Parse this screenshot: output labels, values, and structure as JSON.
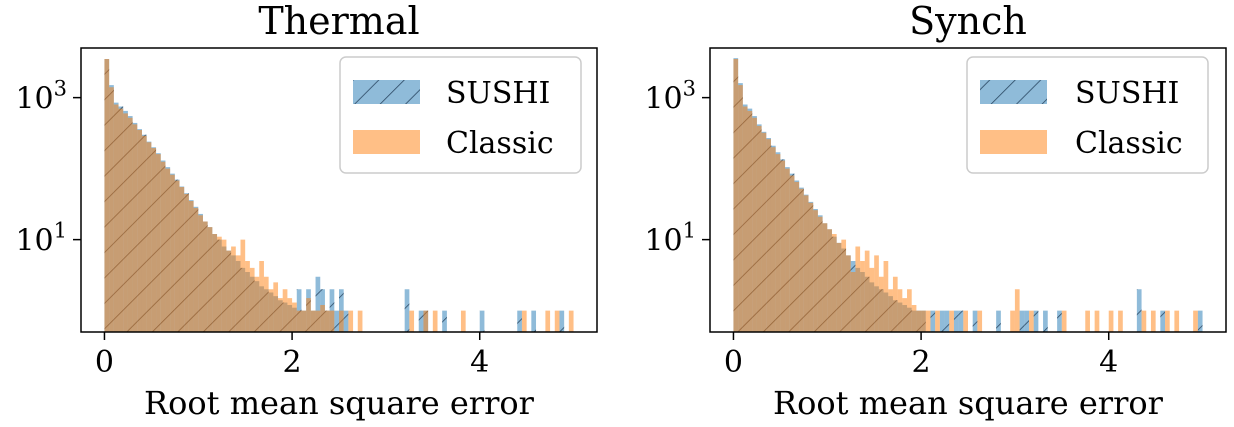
{
  "chart_data": [
    {
      "type": "bar",
      "title": "Thermal",
      "xlabel": "Root mean square error",
      "ylabel": "",
      "xlim": [
        -0.25,
        5.25
      ],
      "ylim": [
        0.5,
        5000
      ],
      "yscale": "log",
      "x_ticks": [
        0,
        2,
        4
      ],
      "x_tick_labels": [
        "0",
        "2",
        "4"
      ],
      "y_ticks": [
        1000,
        10
      ],
      "y_tick_labels": [
        {
          "base": "10",
          "exp": "3"
        },
        {
          "base": "10",
          "exp": "1"
        }
      ],
      "legend_position": "upper right",
      "bin_width": 0.05,
      "series": [
        {
          "name": "SUSHI",
          "color": "#1f77b4",
          "hatch": "/",
          "bins": [
            [
              0.0,
              3500
            ],
            [
              0.05,
              1500
            ],
            [
              0.1,
              850
            ],
            [
              0.15,
              750
            ],
            [
              0.2,
              650
            ],
            [
              0.25,
              550
            ],
            [
              0.3,
              440
            ],
            [
              0.35,
              360
            ],
            [
              0.4,
              300
            ],
            [
              0.45,
              240
            ],
            [
              0.5,
              200
            ],
            [
              0.55,
              165
            ],
            [
              0.6,
              130
            ],
            [
              0.65,
              105
            ],
            [
              0.7,
              85
            ],
            [
              0.75,
              70
            ],
            [
              0.8,
              56
            ],
            [
              0.85,
              45
            ],
            [
              0.9,
              36
            ],
            [
              0.95,
              29
            ],
            [
              1.0,
              23
            ],
            [
              1.05,
              18
            ],
            [
              1.1,
              15
            ],
            [
              1.15,
              12
            ],
            [
              1.2,
              10
            ],
            [
              1.25,
              8
            ],
            [
              1.3,
              7
            ],
            [
              1.35,
              6
            ],
            [
              1.4,
              5
            ],
            [
              1.45,
              4
            ],
            [
              1.5,
              3.5
            ],
            [
              1.55,
              3
            ],
            [
              1.6,
              2.6
            ],
            [
              1.65,
              2.2
            ],
            [
              1.7,
              2
            ],
            [
              1.75,
              1.8
            ],
            [
              1.8,
              1.6
            ],
            [
              1.85,
              1.4
            ],
            [
              1.9,
              1.3
            ],
            [
              1.95,
              1.2
            ],
            [
              2.0,
              1.1
            ],
            [
              2.05,
              2
            ],
            [
              2.1,
              1
            ],
            [
              2.15,
              2
            ],
            [
              2.2,
              1
            ],
            [
              2.25,
              3
            ],
            [
              2.3,
              2
            ],
            [
              2.35,
              1
            ],
            [
              2.4,
              2
            ],
            [
              2.45,
              1
            ],
            [
              2.5,
              2
            ],
            [
              2.55,
              1
            ],
            [
              3.2,
              2
            ],
            [
              3.35,
              1
            ],
            [
              3.4,
              1
            ],
            [
              3.6,
              1
            ],
            [
              4.0,
              1
            ],
            [
              4.4,
              1
            ],
            [
              4.55,
              1
            ],
            [
              4.85,
              1
            ]
          ]
        },
        {
          "name": "Classic",
          "color": "#ff7f0e",
          "bins": [
            [
              0.0,
              3500
            ],
            [
              0.05,
              1400
            ],
            [
              0.1,
              800
            ],
            [
              0.15,
              700
            ],
            [
              0.2,
              600
            ],
            [
              0.25,
              520
            ],
            [
              0.3,
              420
            ],
            [
              0.35,
              350
            ],
            [
              0.4,
              290
            ],
            [
              0.45,
              235
            ],
            [
              0.5,
              195
            ],
            [
              0.55,
              160
            ],
            [
              0.6,
              125
            ],
            [
              0.65,
              100
            ],
            [
              0.7,
              82
            ],
            [
              0.75,
              68
            ],
            [
              0.8,
              55
            ],
            [
              0.85,
              44
            ],
            [
              0.9,
              35
            ],
            [
              0.95,
              28
            ],
            [
              1.0,
              22
            ],
            [
              1.05,
              18
            ],
            [
              1.1,
              15
            ],
            [
              1.15,
              12
            ],
            [
              1.2,
              11
            ],
            [
              1.25,
              10
            ],
            [
              1.3,
              7
            ],
            [
              1.35,
              8
            ],
            [
              1.4,
              6
            ],
            [
              1.45,
              10
            ],
            [
              1.5,
              5
            ],
            [
              1.55,
              4
            ],
            [
              1.6,
              3
            ],
            [
              1.65,
              5
            ],
            [
              1.7,
              3
            ],
            [
              1.75,
              2
            ],
            [
              1.8,
              2.5
            ],
            [
              1.85,
              1.5
            ],
            [
              1.9,
              2
            ],
            [
              1.95,
              1.5
            ],
            [
              2.0,
              1.3
            ],
            [
              2.05,
              1
            ],
            [
              2.1,
              1
            ],
            [
              2.15,
              1.5
            ],
            [
              2.2,
              1
            ],
            [
              2.25,
              1
            ],
            [
              2.3,
              1.2
            ],
            [
              2.35,
              1
            ],
            [
              2.4,
              1
            ],
            [
              2.5,
              1
            ],
            [
              2.6,
              1
            ],
            [
              2.7,
              1
            ],
            [
              3.25,
              1
            ],
            [
              3.4,
              1
            ],
            [
              3.5,
              1
            ],
            [
              3.8,
              1
            ],
            [
              4.45,
              1
            ],
            [
              4.7,
              1
            ],
            [
              4.8,
              1
            ],
            [
              4.95,
              1
            ]
          ]
        }
      ]
    },
    {
      "type": "bar",
      "title": "Synch",
      "xlabel": "Root mean square error",
      "ylabel": "",
      "xlim": [
        -0.25,
        5.25
      ],
      "ylim": [
        0.5,
        5000
      ],
      "yscale": "log",
      "x_ticks": [
        0,
        2,
        4
      ],
      "x_tick_labels": [
        "0",
        "2",
        "4"
      ],
      "y_ticks": [
        1000,
        10
      ],
      "y_tick_labels": [
        {
          "base": "10",
          "exp": "3"
        },
        {
          "base": "10",
          "exp": "1"
        }
      ],
      "legend_position": "upper right",
      "bin_width": 0.05,
      "series": [
        {
          "name": "SUSHI",
          "color": "#1f77b4",
          "hatch": "/",
          "bins": [
            [
              0.0,
              3600
            ],
            [
              0.05,
              1600
            ],
            [
              0.1,
              800
            ],
            [
              0.15,
              700
            ],
            [
              0.2,
              550
            ],
            [
              0.25,
              420
            ],
            [
              0.3,
              330
            ],
            [
              0.35,
              270
            ],
            [
              0.4,
              210
            ],
            [
              0.45,
              170
            ],
            [
              0.5,
              135
            ],
            [
              0.55,
              105
            ],
            [
              0.6,
              85
            ],
            [
              0.65,
              68
            ],
            [
              0.7,
              54
            ],
            [
              0.75,
              43
            ],
            [
              0.8,
              34
            ],
            [
              0.85,
              27
            ],
            [
              0.9,
              22
            ],
            [
              0.95,
              17
            ],
            [
              1.0,
              14
            ],
            [
              1.05,
              11
            ],
            [
              1.1,
              9
            ],
            [
              1.15,
              7.5
            ],
            [
              1.2,
              6
            ],
            [
              1.25,
              5
            ],
            [
              1.3,
              4
            ],
            [
              1.35,
              3.5
            ],
            [
              1.4,
              3
            ],
            [
              1.45,
              2.5
            ],
            [
              1.5,
              2.2
            ],
            [
              1.55,
              2
            ],
            [
              1.6,
              1.8
            ],
            [
              1.65,
              1.6
            ],
            [
              1.7,
              1.4
            ],
            [
              1.75,
              1.3
            ],
            [
              1.8,
              1.2
            ],
            [
              1.85,
              1.1
            ],
            [
              1.9,
              1
            ],
            [
              1.95,
              1
            ],
            [
              2.0,
              1
            ],
            [
              2.1,
              1
            ],
            [
              2.2,
              1
            ],
            [
              2.25,
              1
            ],
            [
              2.35,
              1
            ],
            [
              2.4,
              1
            ],
            [
              2.55,
              1
            ],
            [
              2.8,
              1
            ],
            [
              3.05,
              1
            ],
            [
              3.1,
              1
            ],
            [
              3.2,
              1
            ],
            [
              3.3,
              1
            ],
            [
              3.45,
              1
            ],
            [
              4.3,
              2
            ],
            [
              4.55,
              1
            ],
            [
              4.95,
              1
            ]
          ]
        },
        {
          "name": "Classic",
          "color": "#ff7f0e",
          "bins": [
            [
              0.0,
              3500
            ],
            [
              0.05,
              1500
            ],
            [
              0.1,
              750
            ],
            [
              0.15,
              650
            ],
            [
              0.2,
              520
            ],
            [
              0.25,
              400
            ],
            [
              0.3,
              320
            ],
            [
              0.35,
              260
            ],
            [
              0.4,
              200
            ],
            [
              0.45,
              160
            ],
            [
              0.5,
              130
            ],
            [
              0.55,
              100
            ],
            [
              0.6,
              80
            ],
            [
              0.65,
              65
            ],
            [
              0.7,
              52
            ],
            [
              0.75,
              42
            ],
            [
              0.8,
              33
            ],
            [
              0.85,
              26
            ],
            [
              0.9,
              21
            ],
            [
              0.95,
              17
            ],
            [
              1.0,
              14
            ],
            [
              1.05,
              12
            ],
            [
              1.1,
              9
            ],
            [
              1.15,
              10
            ],
            [
              1.2,
              6
            ],
            [
              1.25,
              3.5
            ],
            [
              1.3,
              8
            ],
            [
              1.35,
              5
            ],
            [
              1.4,
              7
            ],
            [
              1.45,
              4
            ],
            [
              1.5,
              6
            ],
            [
              1.55,
              3
            ],
            [
              1.6,
              5
            ],
            [
              1.65,
              2
            ],
            [
              1.7,
              3
            ],
            [
              1.75,
              2
            ],
            [
              1.8,
              1.5
            ],
            [
              1.85,
              2
            ],
            [
              1.9,
              1.2
            ],
            [
              1.95,
              1
            ],
            [
              2.0,
              1
            ],
            [
              2.05,
              1
            ],
            [
              2.15,
              1
            ],
            [
              2.3,
              1
            ],
            [
              2.45,
              1
            ],
            [
              2.6,
              1
            ],
            [
              2.95,
              1
            ],
            [
              3.0,
              2
            ],
            [
              3.15,
              1
            ],
            [
              3.5,
              1
            ],
            [
              3.75,
              1
            ],
            [
              3.85,
              1
            ],
            [
              4.0,
              1
            ],
            [
              4.1,
              1
            ],
            [
              4.35,
              1
            ],
            [
              4.45,
              1
            ],
            [
              4.6,
              1
            ],
            [
              4.7,
              1
            ],
            [
              4.9,
              1
            ]
          ]
        }
      ]
    }
  ]
}
